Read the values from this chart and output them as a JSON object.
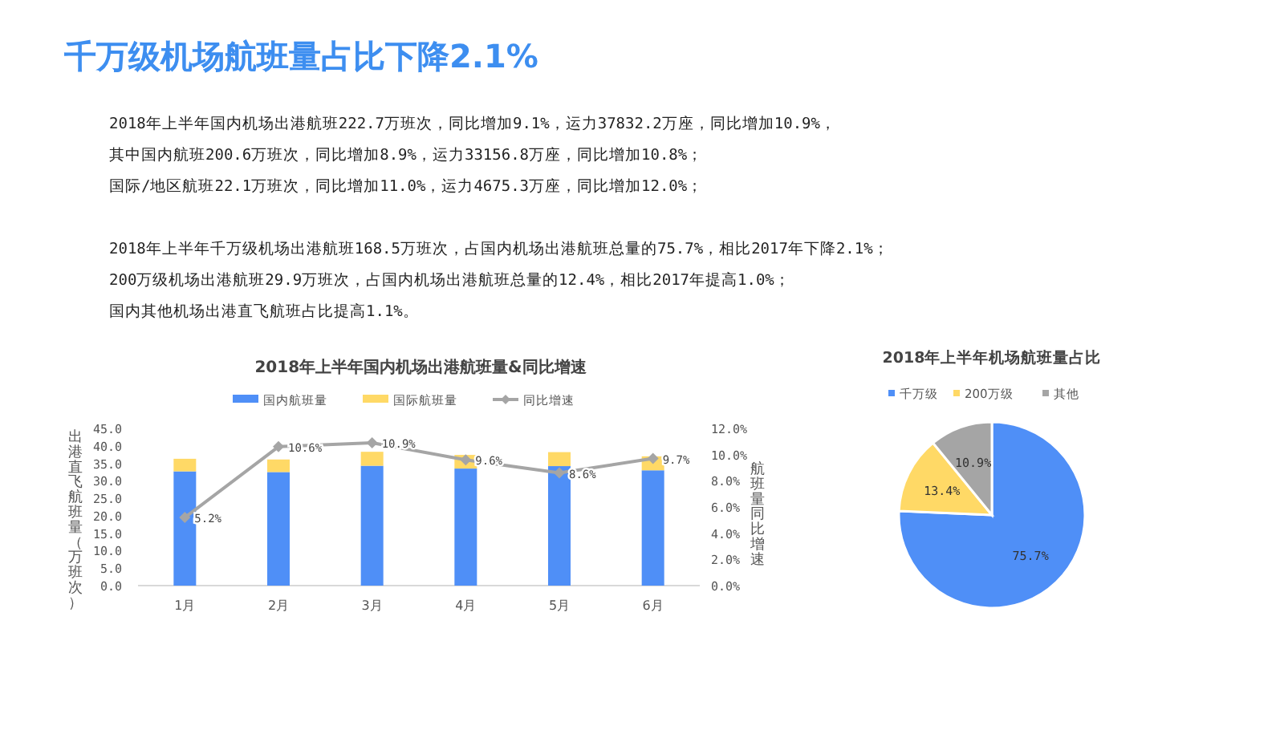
{
  "chart_data": [
    {
      "type": "other",
      "title": "千万级机场航班量占比下降2.1%",
      "annotations": [
        "2018年上半年国内机场出港航班222.7万班次，同比增加9.1%，运力37832.2万座，同比增加10.9%，",
        "其中国内航班200.6万班次，同比增加8.9%，运力33156.8万座，同比增加10.8%；",
        "国际/地区航班22.1万班次，同比增加11.0%，运力4675.3万座，同比增加12.0%；",
        "2018年上半年千万级机场出港航班168.5万班次，占国内机场出港航班总量的75.7%，相比2017年下降2.1%；",
        "200万级机场出港航班29.9万班次，占国内机场出港航班总量的12.4%，相比2017年提高1.0%；",
        "国内其他机场出港直飞航班占比提高1.1%。"
      ]
    },
    {
      "type": "bar",
      "title": "2018年上半年国内机场出港航班量&同比增速",
      "stacked": true,
      "legend": "top",
      "marker": "diamond",
      "ylabel": "出港直飞航班量（万班次）",
      "y2label": "航班量同比增速",
      "categories": [
        "1月",
        "2月",
        "3月",
        "4月",
        "5月",
        "6月"
      ],
      "series": [
        {
          "name": "国内航班量",
          "color": "#4f8ff7",
          "values": [
            32.7,
            32.5,
            34.3,
            33.5,
            34.2,
            33.0
          ]
        },
        {
          "name": "国际航班量",
          "color": "#ffd966",
          "values": [
            3.6,
            3.6,
            4.0,
            3.9,
            4.0,
            4.0
          ]
        },
        {
          "name": "同比增速",
          "type": "line",
          "axis": "y2",
          "color": "#a5a5a5",
          "values": [
            5.2,
            10.6,
            10.9,
            9.6,
            8.6,
            9.7
          ],
          "value_labels": [
            "5.2%",
            "10.6%",
            "10.9%",
            "9.6%",
            "8.6%",
            "9.7%"
          ]
        }
      ],
      "ylim": [
        0,
        45
      ],
      "yticks": [
        {
          "value": 0,
          "label": "0.0"
        },
        {
          "value": 5,
          "label": "5.0"
        },
        {
          "value": 10,
          "label": "10.0"
        },
        {
          "value": 15,
          "label": "15.0"
        },
        {
          "value": 20,
          "label": "20.0"
        },
        {
          "value": 25,
          "label": "25.0"
        },
        {
          "value": 30,
          "label": "30.0"
        },
        {
          "value": 35,
          "label": "35.0"
        },
        {
          "value": 40,
          "label": "40.0"
        },
        {
          "value": 45,
          "label": "45.0"
        }
      ],
      "y2lim": [
        0,
        12
      ],
      "y2ticks": [
        {
          "value": 0,
          "label": "0.0%"
        },
        {
          "value": 2,
          "label": "2.0%"
        },
        {
          "value": 4,
          "label": "4.0%"
        },
        {
          "value": 6,
          "label": "6.0%"
        },
        {
          "value": 8,
          "label": "8.0%"
        },
        {
          "value": 10,
          "label": "10.0%"
        },
        {
          "value": 12,
          "label": "12.0%"
        }
      ]
    },
    {
      "type": "pie",
      "title": "2018年上半年机场航班量占比",
      "legend": "top",
      "categories": [
        "千万级",
        "200万级",
        "其他"
      ],
      "values": [
        75.7,
        13.4,
        10.9
      ],
      "colors": [
        "#4f8ff7",
        "#ffd966",
        "#a5a5a5"
      ],
      "value_labels": [
        "75.7%",
        "13.4%",
        "10.9%"
      ]
    }
  ]
}
